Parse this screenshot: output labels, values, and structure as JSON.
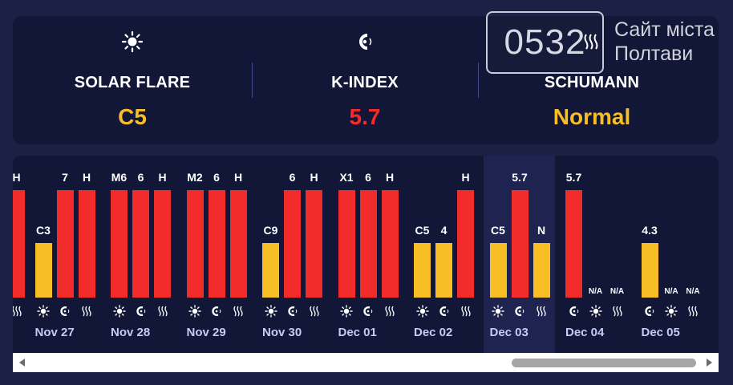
{
  "metrics": {
    "solar_flare": {
      "label": "SOLAR FLARE",
      "value": "C5",
      "icon": "sun-icon",
      "color": "#f7be26"
    },
    "k_index": {
      "label": "K-INDEX",
      "value": "5.7",
      "icon": "magnet-icon",
      "color": "#f22b2b"
    },
    "schumann": {
      "label": "SCHUMANN",
      "value": "Normal",
      "icon": "wave-icon",
      "color": "#f7be26"
    }
  },
  "watermark": {
    "number": "0532",
    "line1": "Сайт міста",
    "line2": "Полтави"
  },
  "colors": {
    "high": "#f22b2b",
    "normal": "#f7be26",
    "date": "#c5cbf5"
  },
  "chart_data": {
    "type": "bar",
    "metrics_per_day": [
      "solar-flare",
      "k-index",
      "schumann"
    ],
    "days": [
      {
        "date": "",
        "bars": [
          {
            "label": "H",
            "level": "high"
          }
        ]
      },
      {
        "date": "Nov 27",
        "bars": [
          {
            "label": "C3",
            "level": "normal"
          },
          {
            "label": "7",
            "level": "high"
          },
          {
            "label": "H",
            "level": "high"
          }
        ]
      },
      {
        "date": "Nov 28",
        "bars": [
          {
            "label": "M6",
            "level": "high"
          },
          {
            "label": "6",
            "level": "high"
          },
          {
            "label": "H",
            "level": "high"
          }
        ]
      },
      {
        "date": "Nov 29",
        "bars": [
          {
            "label": "M2",
            "level": "high"
          },
          {
            "label": "6",
            "level": "high"
          },
          {
            "label": "H",
            "level": "high"
          }
        ]
      },
      {
        "date": "Nov 30",
        "bars": [
          {
            "label": "C9",
            "level": "normal"
          },
          {
            "label": "6",
            "level": "high"
          },
          {
            "label": "H",
            "level": "high"
          }
        ]
      },
      {
        "date": "Dec 01",
        "bars": [
          {
            "label": "X1",
            "level": "high"
          },
          {
            "label": "6",
            "level": "high"
          },
          {
            "label": "H",
            "level": "high"
          }
        ]
      },
      {
        "date": "Dec 02",
        "bars": [
          {
            "label": "C5",
            "level": "normal"
          },
          {
            "label": "4",
            "level": "normal"
          },
          {
            "label": "H",
            "level": "high"
          }
        ]
      },
      {
        "date": "Dec 03",
        "bars": [
          {
            "label": "C5",
            "level": "normal"
          },
          {
            "label": "5.7",
            "level": "high"
          },
          {
            "label": "N",
            "level": "normal"
          }
        ]
      },
      {
        "date": "Dec 04",
        "bars": [
          {
            "label": "5.7",
            "level": "high"
          },
          {
            "label": "N/A",
            "level": "none"
          },
          {
            "label": "N/A",
            "level": "none"
          }
        ]
      },
      {
        "date": "Dec 05",
        "bars": [
          {
            "label": "4.3",
            "level": "normal"
          },
          {
            "label": "N/A",
            "level": "none"
          },
          {
            "label": "N/A",
            "level": "none"
          }
        ]
      }
    ]
  }
}
